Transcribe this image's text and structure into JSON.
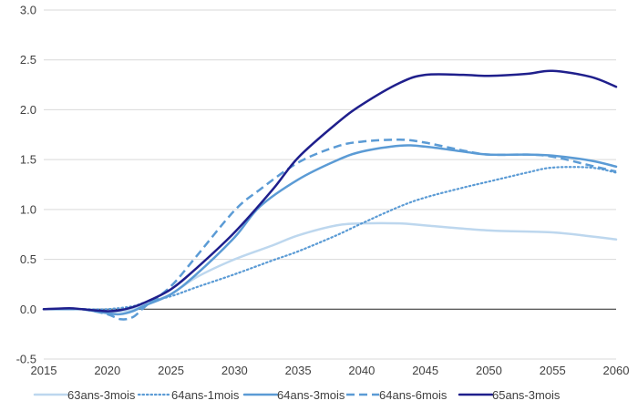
{
  "chart_data": {
    "type": "line",
    "title": "",
    "xlabel": "",
    "ylabel": "",
    "xlim": [
      2015,
      2060
    ],
    "ylim": [
      -0.5,
      3.0
    ],
    "x_ticks": [
      "2015",
      "2020",
      "2025",
      "2030",
      "2035",
      "2040",
      "2045",
      "2050",
      "2055",
      "2060"
    ],
    "y_ticks": [
      "-0.5",
      "0.0",
      "0.5",
      "1.0",
      "1.5",
      "2.0",
      "2.5",
      "3.0"
    ],
    "grid": "horizontal",
    "legend": "bottom",
    "series": [
      {
        "name": "63ans-3mois",
        "color": "#bdd7ee",
        "dash": "solid",
        "x": [
          2015,
          2017,
          2018,
          2020,
          2021,
          2022,
          2023,
          2025,
          2027,
          2030,
          2033,
          2035,
          2038,
          2040,
          2043,
          2045,
          2050,
          2055,
          2058,
          2060
        ],
        "y": [
          0.0,
          0.0,
          0.0,
          -0.02,
          -0.02,
          0.0,
          0.05,
          0.15,
          0.32,
          0.5,
          0.64,
          0.74,
          0.84,
          0.86,
          0.86,
          0.84,
          0.79,
          0.77,
          0.73,
          0.7
        ]
      },
      {
        "name": "64ans-1mois",
        "color": "#5b9bd5",
        "dash": "dotted",
        "x": [
          2015,
          2017,
          2018,
          2020,
          2022,
          2023,
          2025,
          2027,
          2030,
          2033,
          2035,
          2038,
          2040,
          2043,
          2045,
          2048,
          2050,
          2053,
          2055,
          2058,
          2060
        ],
        "y": [
          0.0,
          0.0,
          0.0,
          0.0,
          0.03,
          0.07,
          0.13,
          0.22,
          0.35,
          0.49,
          0.58,
          0.74,
          0.86,
          1.03,
          1.12,
          1.22,
          1.28,
          1.37,
          1.42,
          1.42,
          1.37
        ]
      },
      {
        "name": "64ans-3mois",
        "color": "#5b9bd5",
        "dash": "solid",
        "x": [
          2015,
          2017,
          2018,
          2020,
          2021,
          2022,
          2023,
          2025,
          2027,
          2030,
          2032,
          2035,
          2038,
          2040,
          2043,
          2045,
          2048,
          2050,
          2053,
          2055,
          2058,
          2060
        ],
        "y": [
          0.0,
          0.0,
          0.0,
          -0.04,
          -0.05,
          -0.02,
          0.04,
          0.15,
          0.35,
          0.72,
          1.03,
          1.3,
          1.49,
          1.58,
          1.64,
          1.63,
          1.58,
          1.55,
          1.55,
          1.54,
          1.49,
          1.43
        ]
      },
      {
        "name": "64ans-6mois",
        "color": "#5b9bd5",
        "dash": "dashed",
        "x": [
          2015,
          2017,
          2018,
          2020,
          2021,
          2022,
          2023,
          2025,
          2027,
          2030,
          2032,
          2035,
          2038,
          2040,
          2043,
          2045,
          2048,
          2050,
          2053,
          2055,
          2058,
          2060
        ],
        "y": [
          0.0,
          0.0,
          0.0,
          -0.05,
          -0.1,
          -0.08,
          0.03,
          0.23,
          0.53,
          0.99,
          1.2,
          1.47,
          1.63,
          1.68,
          1.7,
          1.67,
          1.59,
          1.55,
          1.55,
          1.53,
          1.44,
          1.38
        ]
      },
      {
        "name": "65ans-3mois",
        "color": "#1f1f8c",
        "dash": "solid",
        "x": [
          2015,
          2017,
          2018,
          2020,
          2021,
          2022,
          2023,
          2025,
          2027,
          2030,
          2033,
          2035,
          2038,
          2040,
          2043,
          2045,
          2048,
          2050,
          2053,
          2055,
          2058,
          2060
        ],
        "y": [
          0.0,
          0.01,
          0.0,
          -0.02,
          -0.01,
          0.02,
          0.07,
          0.2,
          0.41,
          0.77,
          1.2,
          1.52,
          1.86,
          2.05,
          2.27,
          2.35,
          2.35,
          2.34,
          2.36,
          2.39,
          2.33,
          2.23
        ]
      }
    ]
  }
}
